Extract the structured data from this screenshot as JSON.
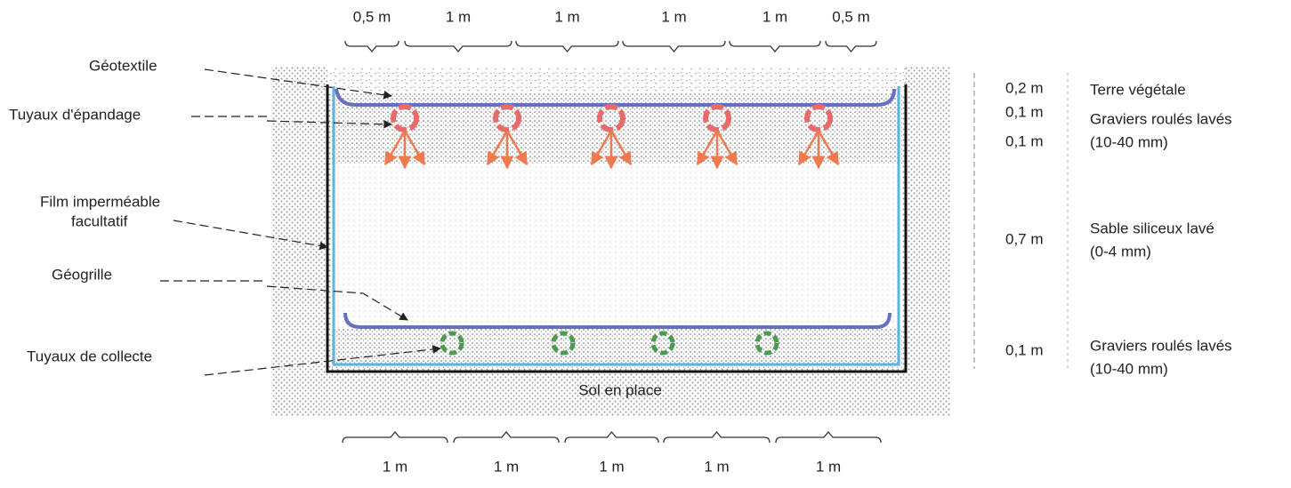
{
  "top_dimensions": [
    "0,5 m",
    "1 m",
    "1 m",
    "1 m",
    "1 m",
    "0,5 m"
  ],
  "bottom_dimensions": [
    "1 m",
    "1 m",
    "1 m",
    "1 m",
    "1 m"
  ],
  "left_labels": [
    {
      "lines": [
        "Géotextile"
      ]
    },
    {
      "lines": [
        "Tuyaux d'épandage"
      ]
    },
    {
      "lines": [
        "Film imperméable",
        "facultatif"
      ]
    },
    {
      "lines": [
        "Géogrille"
      ]
    },
    {
      "lines": [
        "Tuyaux de collecte"
      ]
    }
  ],
  "depths": [
    "0,2 m",
    "0,1 m",
    "0,1 m",
    "0,7 m",
    "0,1 m"
  ],
  "layers": [
    {
      "lines": [
        "Terre végétale"
      ]
    },
    {
      "lines": [
        "Graviers roulés lavés",
        "(10-40 mm)"
      ]
    },
    {
      "lines": [
        "Sable siliceux lavé",
        "(0-4 mm)"
      ]
    },
    {
      "lines": [
        "Graviers roulés lavés",
        "(10-40 mm)"
      ]
    }
  ],
  "center_label": "Sol en place"
}
